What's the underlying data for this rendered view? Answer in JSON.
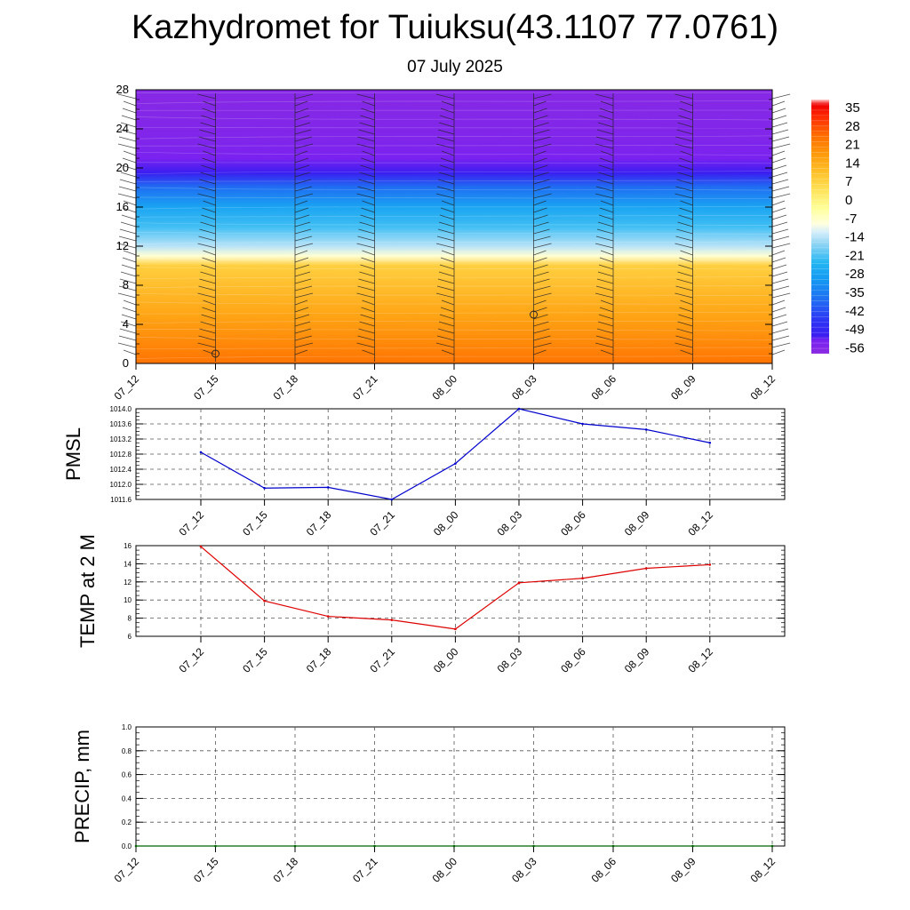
{
  "title": "Kazhydromet for Tuiuksu(43.1107 77.0761)",
  "subtitle": "07 July 2025",
  "chart_data": [
    {
      "type": "heatmap",
      "x_labels": [
        "07_12",
        "07_15",
        "07_18",
        "07_21",
        "08_00",
        "08_03",
        "08_06",
        "08_09",
        "08_12"
      ],
      "y_ticks": [
        0,
        4,
        8,
        12,
        16,
        20,
        24,
        28
      ],
      "ylim": [
        0,
        28
      ],
      "colorbar_labels": [
        "35",
        "28",
        "21",
        "14",
        "7",
        "0",
        "-7",
        "-14",
        "-21",
        "-28",
        "-35",
        "-42",
        "-49",
        "-56"
      ],
      "level_profile": [
        {
          "y": 0,
          "value": 20
        },
        {
          "y": 5,
          "value": 12
        },
        {
          "y": 10,
          "value": 4
        },
        {
          "y": 11,
          "value": -12
        },
        {
          "y": 12,
          "value": -18
        },
        {
          "y": 14,
          "value": -26
        },
        {
          "y": 16,
          "value": -32
        },
        {
          "y": 18,
          "value": -42
        },
        {
          "y": 19.5,
          "value": -56
        },
        {
          "y": 21,
          "value": -58
        },
        {
          "y": 23,
          "value": -60
        },
        {
          "y": 28,
          "value": -62
        }
      ],
      "colors": {
        "warm": "#ff7a00",
        "freezing": "#ffffc8",
        "cold": "#2ab4f0",
        "coldest": "#8a2bff"
      }
    },
    {
      "type": "line",
      "ylabel": "PMSL",
      "x": [
        "07_12",
        "07_15",
        "07_18",
        "07_21",
        "08_00",
        "08_03",
        "08_06",
        "08_09",
        "08_12"
      ],
      "values": [
        1012.85,
        1011.9,
        1011.92,
        1011.6,
        1012.55,
        1014.0,
        1013.6,
        1013.45,
        1013.1
      ],
      "ylim": [
        1011.6,
        1014.0
      ],
      "y_ticks": [
        "1011.6",
        "1012.0",
        "1012.4",
        "1012.8",
        "1013.2",
        "1013.6",
        "1014.0"
      ],
      "color": "#0000cc",
      "grid": true
    },
    {
      "type": "line",
      "ylabel": "TEMP at 2 M",
      "x": [
        "07_12",
        "07_15",
        "07_18",
        "07_21",
        "08_00",
        "08_03",
        "08_06",
        "08_09",
        "08_12"
      ],
      "values": [
        15.9,
        9.9,
        8.2,
        7.8,
        6.8,
        11.9,
        12.4,
        13.5,
        13.9
      ],
      "ylim": [
        6,
        16
      ],
      "y_ticks": [
        "6",
        "8",
        "10",
        "12",
        "14",
        "16"
      ],
      "color": "#dd0000",
      "grid": true
    },
    {
      "type": "line",
      "ylabel": "PRECIP, mm",
      "x": [
        "07_12",
        "07_15",
        "07_18",
        "07_21",
        "08_00",
        "08_03",
        "08_06",
        "08_09",
        "08_12"
      ],
      "values": [
        0,
        0,
        0,
        0,
        0,
        0,
        0,
        0,
        0
      ],
      "ylim": [
        0,
        1
      ],
      "y_ticks": [
        "0.0",
        "0.2",
        "0.4",
        "0.6",
        "0.8",
        "1.0"
      ],
      "color": "#006400",
      "grid": true
    }
  ]
}
